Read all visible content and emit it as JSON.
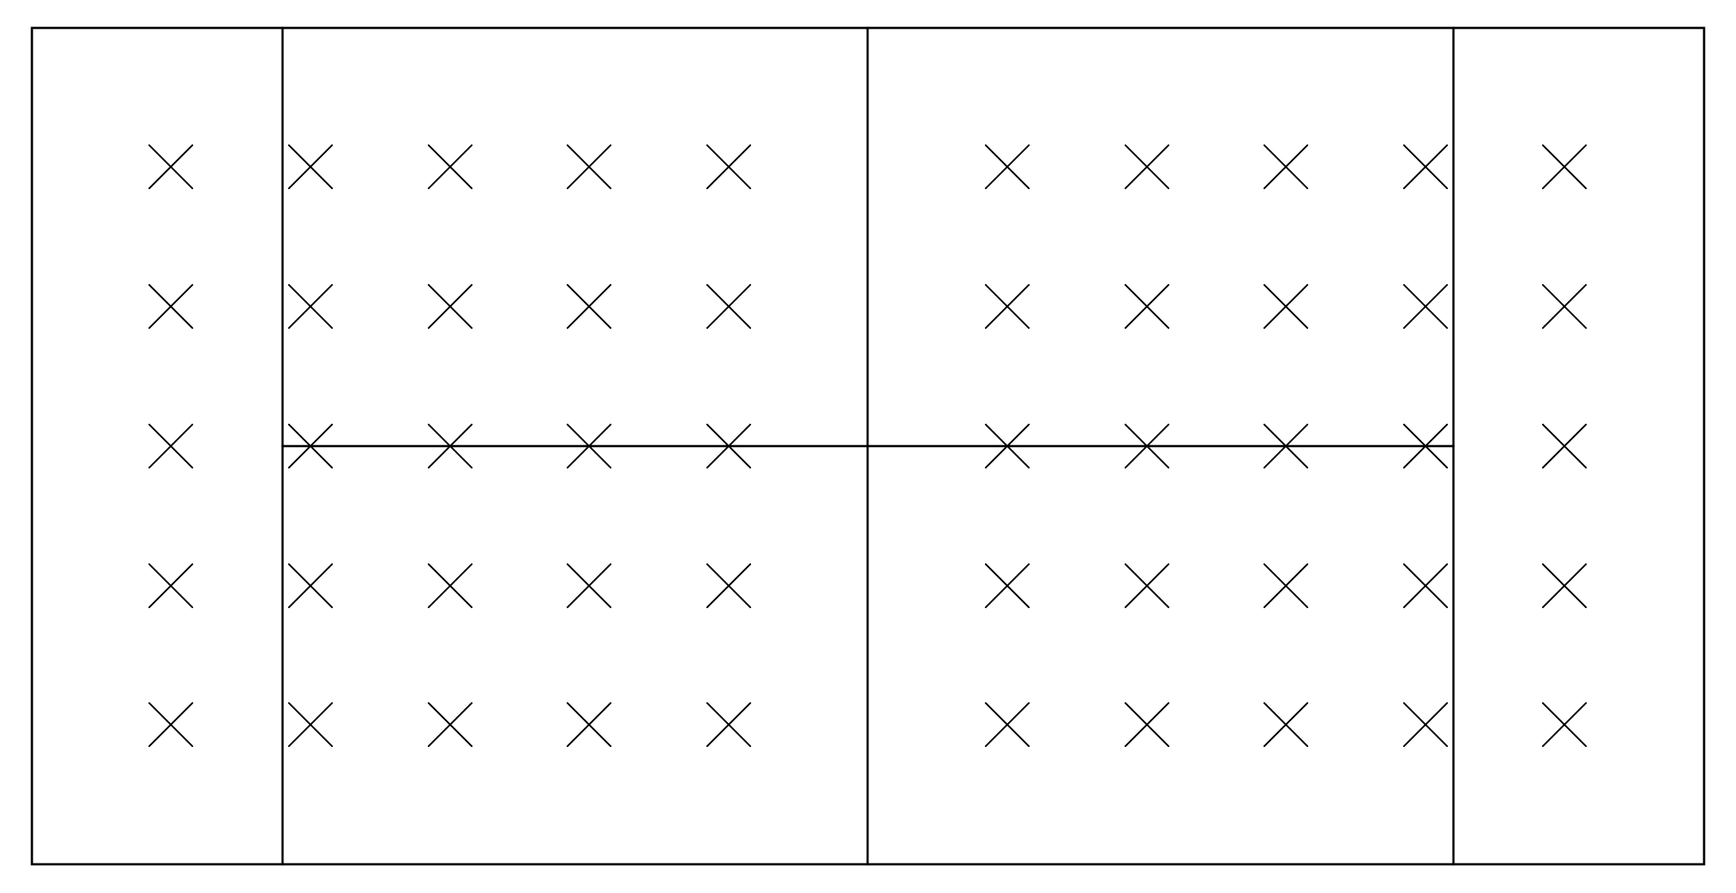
{
  "diagram": {
    "type": "grid-of-crosses",
    "line_color": "#000000",
    "background": "#ffffff",
    "mark_symbol": "cross-icon",
    "regions": [
      {
        "id": "left-panel",
        "columns": 1,
        "rows": 5
      },
      {
        "id": "center-left-panel",
        "columns": 4,
        "rows": 5,
        "split": "horizontal-midline"
      },
      {
        "id": "center-right-panel",
        "columns": 4,
        "rows": 5,
        "split": "horizontal-midline"
      },
      {
        "id": "right-panel",
        "columns": 1,
        "rows": 5
      }
    ],
    "cross_count": 50
  }
}
